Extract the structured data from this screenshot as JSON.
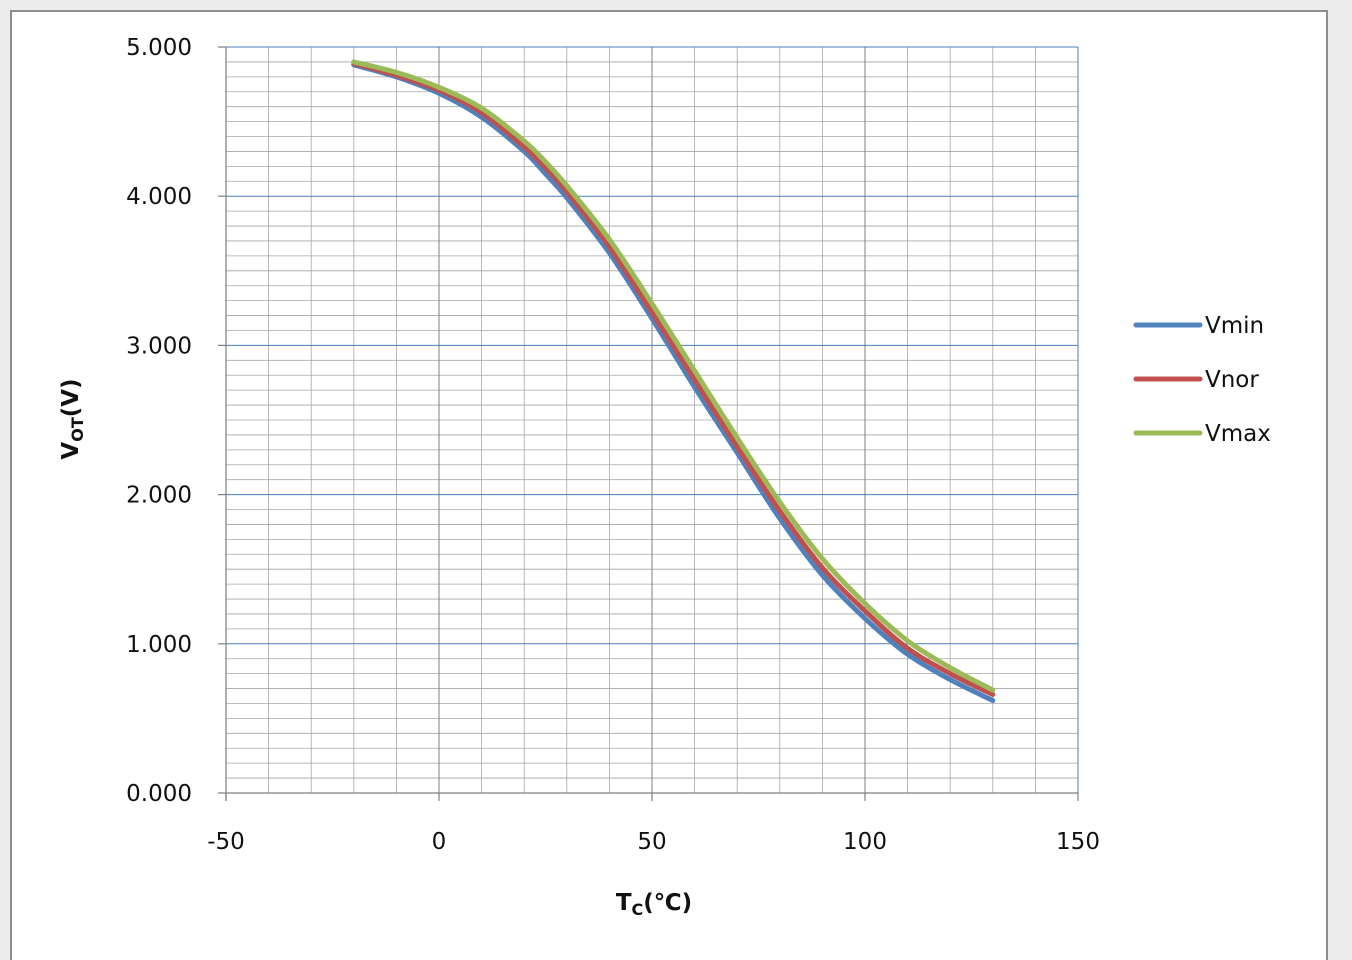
{
  "chart_data": {
    "type": "line",
    "xlabel": {
      "main": "T",
      "sub": "C",
      "unit": "(℃)"
    },
    "ylabel": {
      "main": "V",
      "sub": "OT",
      "unit": "(V)"
    },
    "xlim": [
      -50,
      150
    ],
    "ylim": [
      0,
      5
    ],
    "x_ticks": [
      "-50",
      "0",
      "50",
      "100",
      "150"
    ],
    "y_ticks": [
      "0.000",
      "1.000",
      "2.000",
      "3.000",
      "4.000",
      "5.000"
    ],
    "grid": {
      "major": true,
      "minor": true
    },
    "legend_position": "right",
    "x": [
      -20,
      -10,
      0,
      10,
      20,
      25,
      30,
      40,
      50,
      60,
      70,
      80,
      90,
      100,
      110,
      120,
      130
    ],
    "series": [
      {
        "name": "Vmin",
        "color": "#4f81bd",
        "values": [
          4.88,
          4.8,
          4.69,
          4.53,
          4.3,
          4.15,
          3.99,
          3.62,
          3.18,
          2.72,
          2.28,
          1.84,
          1.46,
          1.17,
          0.93,
          0.76,
          0.62
        ]
      },
      {
        "name": "Vnor",
        "color": "#c0504d",
        "values": [
          4.89,
          4.81,
          4.71,
          4.56,
          4.33,
          4.19,
          4.03,
          3.66,
          3.22,
          2.77,
          2.32,
          1.89,
          1.51,
          1.22,
          0.97,
          0.8,
          0.66
        ]
      },
      {
        "name": "Vmax",
        "color": "#9bbb59",
        "values": [
          4.9,
          4.83,
          4.73,
          4.59,
          4.37,
          4.23,
          4.07,
          3.71,
          3.28,
          2.83,
          2.38,
          1.95,
          1.57,
          1.27,
          1.02,
          0.84,
          0.69
        ]
      }
    ]
  }
}
